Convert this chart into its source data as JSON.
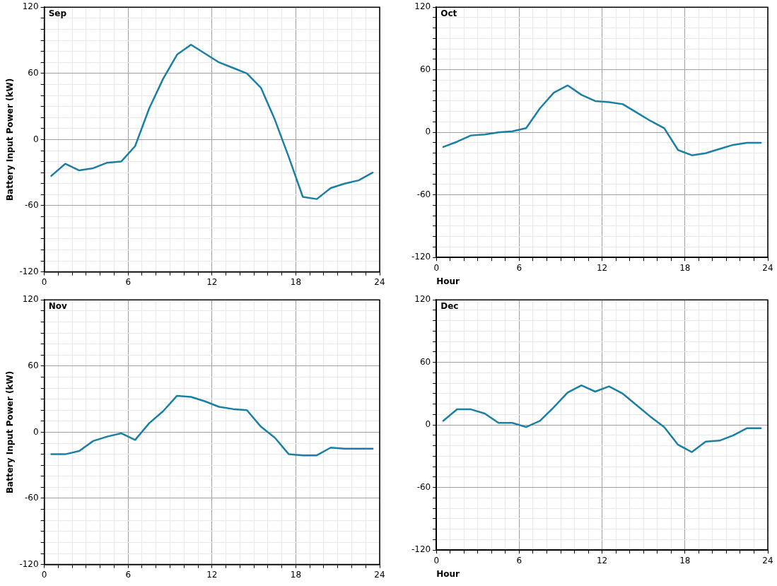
{
  "chart_data": [
    {
      "type": "line",
      "title": "Sep",
      "ylabel": "Battery Input Power (kW)",
      "x": [
        0.5,
        1.5,
        2.5,
        3.5,
        4.5,
        5.5,
        6.5,
        7.5,
        8.5,
        9.5,
        10.5,
        11.5,
        12.5,
        13.5,
        14.5,
        15.5,
        16.5,
        17.5,
        18.5,
        19.5,
        20.5,
        21.5,
        22.5,
        23.5
      ],
      "series": [
        {
          "color": "#1b7fa3",
          "values": [
            -33,
            -22,
            -28,
            -26,
            -21,
            -20,
            -6,
            28,
            55,
            77,
            86,
            78,
            70,
            65,
            60,
            47,
            18,
            -16,
            -52,
            -54,
            -44,
            -40,
            -37,
            -30
          ]
        }
      ],
      "xlim": [
        0,
        24
      ],
      "ylim": [
        -120,
        120
      ],
      "xticks": [
        0,
        {
          "value": 1,
          "label": null
        },
        {
          "value": 2,
          "label": null
        },
        {
          "value": 3,
          "label": null
        },
        {
          "value": 4,
          "label": null
        },
        {
          "value": 5,
          "label": null
        },
        6,
        {
          "value": 7,
          "label": null
        },
        {
          "value": 8,
          "label": null
        },
        {
          "value": 9,
          "label": null
        },
        {
          "value": 10,
          "label": null
        },
        {
          "value": 11,
          "label": null
        },
        12,
        {
          "value": 13,
          "label": null
        },
        {
          "value": 14,
          "label": null
        },
        {
          "value": 15,
          "label": null
        },
        {
          "value": 16,
          "label": null
        },
        {
          "value": 17,
          "label": null
        },
        18,
        {
          "value": 19,
          "label": null
        },
        {
          "value": 20,
          "label": null
        },
        {
          "value": 21,
          "label": null
        },
        {
          "value": 22,
          "label": null
        },
        {
          "value": 23,
          "label": null
        },
        24
      ],
      "yticks": [
        -120,
        {
          "value": -110,
          "label": null
        },
        {
          "value": -100,
          "label": null
        },
        {
          "value": -90,
          "label": null
        },
        {
          "value": -80,
          "label": null
        },
        {
          "value": -70,
          "label": null
        },
        -60,
        {
          "value": -50,
          "label": null
        },
        {
          "value": -40,
          "label": null
        },
        {
          "value": -30,
          "label": null
        },
        {
          "value": -20,
          "label": null
        },
        {
          "value": -10,
          "label": null
        },
        0,
        {
          "value": 10,
          "label": null
        },
        {
          "value": 20,
          "label": null
        },
        {
          "value": 30,
          "label": null
        },
        {
          "value": 40,
          "label": null
        },
        {
          "value": 50,
          "label": null
        },
        60,
        {
          "value": 70,
          "label": null
        },
        {
          "value": 80,
          "label": null
        },
        {
          "value": 90,
          "label": null
        },
        {
          "value": 100,
          "label": null
        },
        {
          "value": 110,
          "label": null
        },
        120
      ],
      "grid": true,
      "legend": false,
      "marker": "none",
      "line_style": "solid"
    },
    {
      "type": "line",
      "title": "Oct",
      "xlabel": "Hour",
      "x": [
        0.5,
        1.5,
        2.5,
        3.5,
        4.5,
        5.5,
        6.5,
        7.5,
        8.5,
        9.5,
        10.5,
        11.5,
        12.5,
        13.5,
        14.5,
        15.5,
        16.5,
        17.5,
        18.5,
        19.5,
        20.5,
        21.5,
        22.5,
        23.5
      ],
      "series": [
        {
          "color": "#1b7fa3",
          "values": [
            -14,
            -9,
            -3,
            -2,
            0,
            1,
            4,
            23,
            38,
            45,
            36,
            30,
            29,
            27,
            19,
            11,
            4,
            -17,
            -22,
            -20,
            -16,
            -12,
            -10,
            -10
          ]
        }
      ],
      "xlim": [
        0,
        24
      ],
      "ylim": [
        -120,
        120
      ],
      "xticks": [
        0,
        {
          "value": 1,
          "label": null
        },
        {
          "value": 2,
          "label": null
        },
        {
          "value": 3,
          "label": null
        },
        {
          "value": 4,
          "label": null
        },
        {
          "value": 5,
          "label": null
        },
        6,
        {
          "value": 7,
          "label": null
        },
        {
          "value": 8,
          "label": null
        },
        {
          "value": 9,
          "label": null
        },
        {
          "value": 10,
          "label": null
        },
        {
          "value": 11,
          "label": null
        },
        12,
        {
          "value": 13,
          "label": null
        },
        {
          "value": 14,
          "label": null
        },
        {
          "value": 15,
          "label": null
        },
        {
          "value": 16,
          "label": null
        },
        {
          "value": 17,
          "label": null
        },
        18,
        {
          "value": 19,
          "label": null
        },
        {
          "value": 20,
          "label": null
        },
        {
          "value": 21,
          "label": null
        },
        {
          "value": 22,
          "label": null
        },
        {
          "value": 23,
          "label": null
        },
        24
      ],
      "yticks": [
        -120,
        {
          "value": -110,
          "label": null
        },
        {
          "value": -100,
          "label": null
        },
        {
          "value": -90,
          "label": null
        },
        {
          "value": -80,
          "label": null
        },
        {
          "value": -70,
          "label": null
        },
        -60,
        {
          "value": -50,
          "label": null
        },
        {
          "value": -40,
          "label": null
        },
        {
          "value": -30,
          "label": null
        },
        {
          "value": -20,
          "label": null
        },
        {
          "value": -10,
          "label": null
        },
        0,
        {
          "value": 10,
          "label": null
        },
        {
          "value": 20,
          "label": null
        },
        {
          "value": 30,
          "label": null
        },
        {
          "value": 40,
          "label": null
        },
        {
          "value": 50,
          "label": null
        },
        60,
        {
          "value": 70,
          "label": null
        },
        {
          "value": 80,
          "label": null
        },
        {
          "value": 90,
          "label": null
        },
        {
          "value": 100,
          "label": null
        },
        {
          "value": 110,
          "label": null
        },
        120
      ],
      "grid": true,
      "legend": false,
      "marker": "none",
      "line_style": "solid"
    },
    {
      "type": "line",
      "title": "Nov",
      "ylabel": "Battery Input Power (kW)",
      "x": [
        0.5,
        1.5,
        2.5,
        3.5,
        4.5,
        5.5,
        6.5,
        7.5,
        8.5,
        9.5,
        10.5,
        11.5,
        12.5,
        13.5,
        14.5,
        15.5,
        16.5,
        17.5,
        18.5,
        19.5,
        20.5,
        21.5,
        22.5,
        23.5
      ],
      "series": [
        {
          "color": "#1b7fa3",
          "values": [
            -20,
            -20,
            -17,
            -8,
            -4,
            -1,
            -7,
            8,
            19,
            33,
            32,
            28,
            23,
            21,
            20,
            5,
            -5,
            -20,
            -21,
            -21,
            -14,
            -15,
            -15,
            -15
          ]
        }
      ],
      "xlim": [
        0,
        24
      ],
      "ylim": [
        -120,
        120
      ],
      "xticks": [
        0,
        {
          "value": 1,
          "label": null
        },
        {
          "value": 2,
          "label": null
        },
        {
          "value": 3,
          "label": null
        },
        {
          "value": 4,
          "label": null
        },
        {
          "value": 5,
          "label": null
        },
        6,
        {
          "value": 7,
          "label": null
        },
        {
          "value": 8,
          "label": null
        },
        {
          "value": 9,
          "label": null
        },
        {
          "value": 10,
          "label": null
        },
        {
          "value": 11,
          "label": null
        },
        12,
        {
          "value": 13,
          "label": null
        },
        {
          "value": 14,
          "label": null
        },
        {
          "value": 15,
          "label": null
        },
        {
          "value": 16,
          "label": null
        },
        {
          "value": 17,
          "label": null
        },
        18,
        {
          "value": 19,
          "label": null
        },
        {
          "value": 20,
          "label": null
        },
        {
          "value": 21,
          "label": null
        },
        {
          "value": 22,
          "label": null
        },
        {
          "value": 23,
          "label": null
        },
        24
      ],
      "yticks": [
        -120,
        {
          "value": -110,
          "label": null
        },
        {
          "value": -100,
          "label": null
        },
        {
          "value": -90,
          "label": null
        },
        {
          "value": -80,
          "label": null
        },
        {
          "value": -70,
          "label": null
        },
        -60,
        {
          "value": -50,
          "label": null
        },
        {
          "value": -40,
          "label": null
        },
        {
          "value": -30,
          "label": null
        },
        {
          "value": -20,
          "label": null
        },
        {
          "value": -10,
          "label": null
        },
        0,
        {
          "value": 10,
          "label": null
        },
        {
          "value": 20,
          "label": null
        },
        {
          "value": 30,
          "label": null
        },
        {
          "value": 40,
          "label": null
        },
        {
          "value": 50,
          "label": null
        },
        60,
        {
          "value": 70,
          "label": null
        },
        {
          "value": 80,
          "label": null
        },
        {
          "value": 90,
          "label": null
        },
        {
          "value": 100,
          "label": null
        },
        {
          "value": 110,
          "label": null
        },
        120
      ],
      "grid": true,
      "legend": false,
      "marker": "none",
      "line_style": "solid"
    },
    {
      "type": "line",
      "title": "Dec",
      "xlabel": "Hour",
      "x": [
        0.5,
        1.5,
        2.5,
        3.5,
        4.5,
        5.5,
        6.5,
        7.5,
        8.5,
        9.5,
        10.5,
        11.5,
        12.5,
        13.5,
        14.5,
        15.5,
        16.5,
        17.5,
        18.5,
        19.5,
        20.5,
        21.5,
        22.5,
        23.5
      ],
      "series": [
        {
          "color": "#1b7fa3",
          "values": [
            4,
            15,
            15,
            11,
            2,
            2,
            -2,
            4,
            17,
            31,
            38,
            32,
            37,
            30,
            19,
            8,
            -2,
            -19,
            -26,
            -16,
            -15,
            -10,
            -3,
            -3
          ]
        }
      ],
      "xlim": [
        0,
        24
      ],
      "ylim": [
        -120,
        120
      ],
      "xticks": [
        0,
        {
          "value": 1,
          "label": null
        },
        {
          "value": 2,
          "label": null
        },
        {
          "value": 3,
          "label": null
        },
        {
          "value": 4,
          "label": null
        },
        {
          "value": 5,
          "label": null
        },
        6,
        {
          "value": 7,
          "label": null
        },
        {
          "value": 8,
          "label": null
        },
        {
          "value": 9,
          "label": null
        },
        {
          "value": 10,
          "label": null
        },
        {
          "value": 11,
          "label": null
        },
        12,
        {
          "value": 13,
          "label": null
        },
        {
          "value": 14,
          "label": null
        },
        {
          "value": 15,
          "label": null
        },
        {
          "value": 16,
          "label": null
        },
        {
          "value": 17,
          "label": null
        },
        18,
        {
          "value": 19,
          "label": null
        },
        {
          "value": 20,
          "label": null
        },
        {
          "value": 21,
          "label": null
        },
        {
          "value": 22,
          "label": null
        },
        {
          "value": 23,
          "label": null
        },
        24
      ],
      "yticks": [
        -120,
        {
          "value": -110,
          "label": null
        },
        {
          "value": -100,
          "label": null
        },
        {
          "value": -90,
          "label": null
        },
        {
          "value": -80,
          "label": null
        },
        {
          "value": -70,
          "label": null
        },
        -60,
        {
          "value": -50,
          "label": null
        },
        {
          "value": -40,
          "label": null
        },
        {
          "value": -30,
          "label": null
        },
        {
          "value": -20,
          "label": null
        },
        {
          "value": -10,
          "label": null
        },
        0,
        {
          "value": 10,
          "label": null
        },
        {
          "value": 20,
          "label": null
        },
        {
          "value": 30,
          "label": null
        },
        {
          "value": 40,
          "label": null
        },
        {
          "value": 50,
          "label": null
        },
        60,
        {
          "value": 70,
          "label": null
        },
        {
          "value": 80,
          "label": null
        },
        {
          "value": 90,
          "label": null
        },
        {
          "value": 100,
          "label": null
        },
        {
          "value": 110,
          "label": null
        },
        120
      ],
      "grid": true,
      "legend": false,
      "marker": "none",
      "line_style": "solid"
    }
  ]
}
